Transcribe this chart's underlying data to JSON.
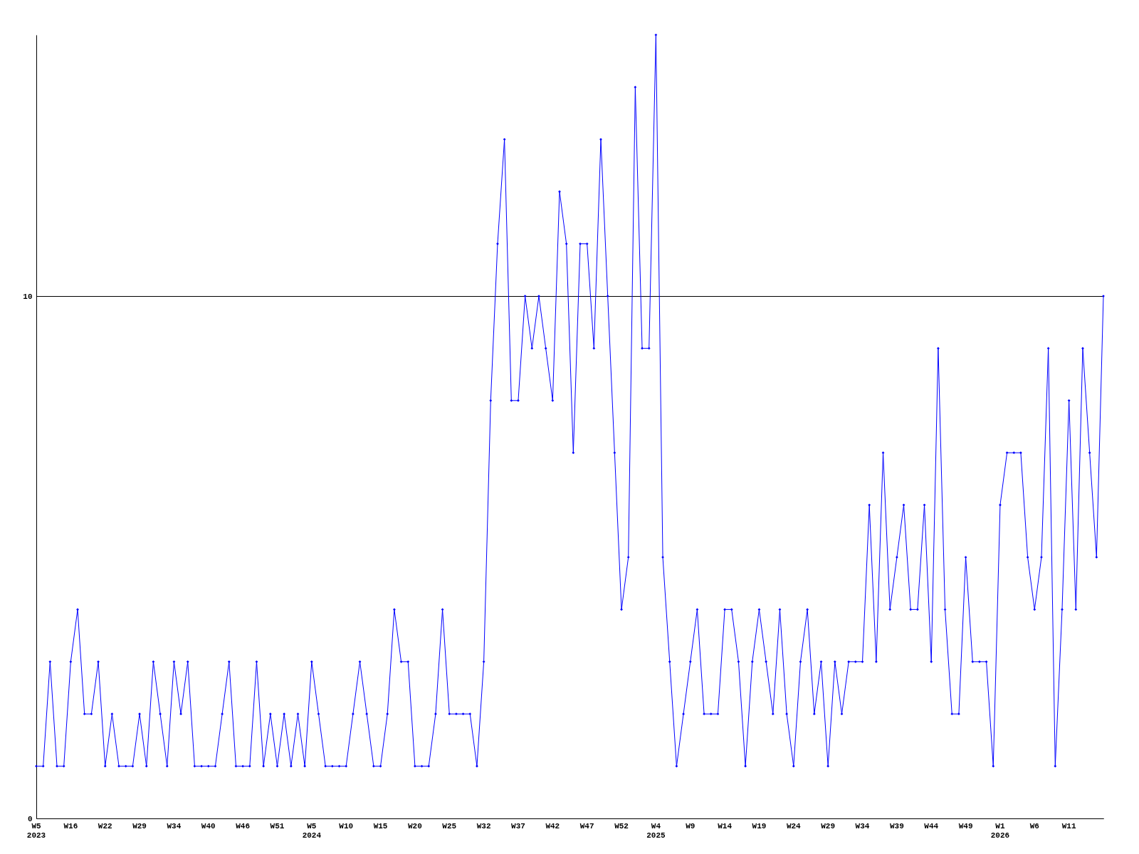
{
  "chart_data": {
    "type": "line",
    "categories": [
      "W5\n2023",
      null,
      null,
      null,
      null,
      "W16",
      null,
      null,
      null,
      null,
      "W22",
      null,
      null,
      null,
      null,
      "W29",
      null,
      null,
      null,
      null,
      "W34",
      null,
      null,
      null,
      null,
      "W40",
      null,
      null,
      null,
      null,
      "W46",
      null,
      null,
      null,
      null,
      "W51",
      null,
      null,
      null,
      null,
      "W5\n2024",
      null,
      null,
      null,
      null,
      "W10",
      null,
      null,
      null,
      null,
      "W15",
      null,
      null,
      null,
      null,
      "W20",
      null,
      null,
      null,
      null,
      "W25",
      null,
      null,
      null,
      null,
      "W32",
      null,
      null,
      null,
      null,
      "W37",
      null,
      null,
      null,
      null,
      "W42",
      null,
      null,
      null,
      null,
      "W47",
      null,
      null,
      null,
      null,
      "W52",
      null,
      null,
      null,
      null,
      "W4\n2025",
      null,
      null,
      null,
      null,
      "W9",
      null,
      null,
      null,
      null,
      "W14",
      null,
      null,
      null,
      null,
      "W19",
      null,
      null,
      null,
      null,
      "W24",
      null,
      null,
      null,
      null,
      "W29",
      null,
      null,
      null,
      null,
      "W34",
      null,
      null,
      null,
      null,
      "W39",
      null,
      null,
      null,
      null,
      "W44",
      null,
      null,
      null,
      null,
      "W49",
      null,
      null,
      null,
      null,
      "W1\n2026",
      null,
      null,
      null,
      null,
      "W6",
      null,
      null,
      null,
      null,
      "W11",
      null,
      null,
      null,
      null,
      null
    ],
    "series": [
      {
        "color": "#0000ff",
        "values": [
          1,
          1,
          3,
          1,
          1,
          3,
          4,
          2,
          2,
          3,
          1,
          2,
          1,
          1,
          1,
          2,
          1,
          3,
          2,
          1,
          3,
          2,
          3,
          1,
          1,
          1,
          1,
          2,
          3,
          1,
          1,
          1,
          3,
          1,
          2,
          1,
          2,
          1,
          2,
          1,
          3,
          2,
          1,
          1,
          1,
          1,
          2,
          3,
          2,
          1,
          1,
          2,
          4,
          3,
          3,
          1,
          1,
          1,
          2,
          4,
          2,
          2,
          2,
          2,
          1,
          3,
          8,
          11,
          13,
          8,
          8,
          10,
          9,
          10,
          9,
          8,
          12,
          11,
          7,
          11,
          11,
          9,
          13,
          10,
          7,
          4,
          5,
          14,
          9,
          9,
          15,
          5,
          3,
          1,
          2,
          3,
          4,
          2,
          2,
          2,
          4,
          4,
          3,
          1,
          3,
          4,
          3,
          2,
          4,
          2,
          1,
          3,
          4,
          2,
          3,
          1,
          3,
          2,
          3,
          3,
          3,
          6,
          3,
          7,
          4,
          5,
          6,
          4,
          4,
          6,
          3,
          9,
          4,
          2,
          2,
          5,
          3,
          3,
          3,
          1,
          6,
          7,
          7,
          7,
          5,
          4,
          5,
          9,
          1,
          4,
          8,
          4,
          9,
          7,
          5,
          10
        ]
      }
    ],
    "ylim": [
      0,
      15
    ],
    "yticks": [
      0,
      10
    ],
    "grid": "y",
    "marker": "diamond",
    "line_style": "solid"
  }
}
